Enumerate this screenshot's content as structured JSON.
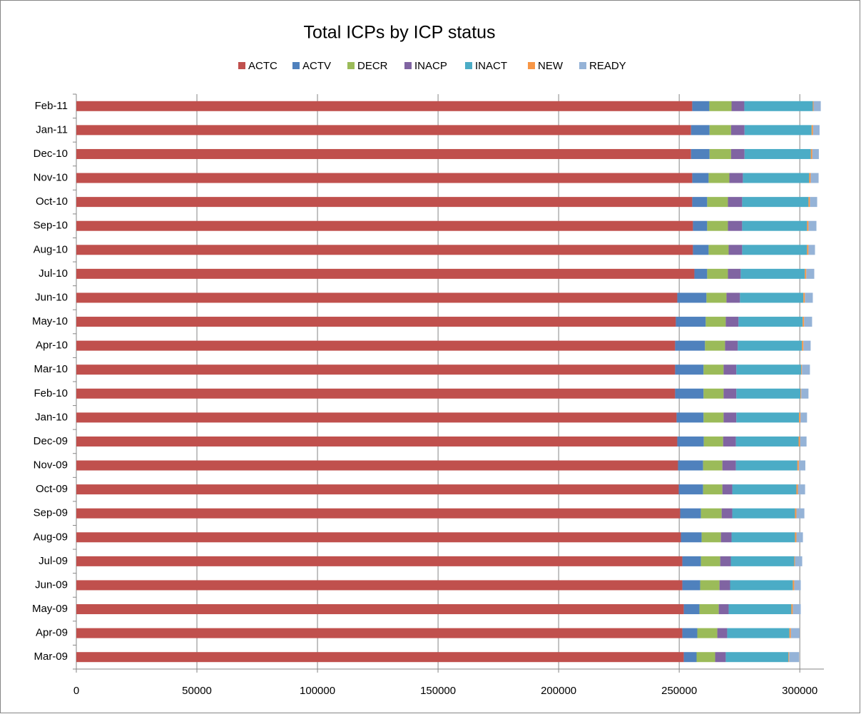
{
  "chart_data": {
    "type": "stacked-hbar",
    "title": "Total ICPs by ICP status",
    "categories": [
      "Mar-09",
      "Apr-09",
      "May-09",
      "Jun-09",
      "Jul-09",
      "Aug-09",
      "Sep-09",
      "Oct-09",
      "Nov-09",
      "Dec-09",
      "Jan-10",
      "Feb-10",
      "Mar-10",
      "Apr-10",
      "May-10",
      "Jun-10",
      "Jul-10",
      "Aug-10",
      "Sep-10",
      "Oct-10",
      "Nov-10",
      "Dec-10",
      "Jan-11",
      "Feb-11"
    ],
    "series": [
      {
        "name": "ACTC",
        "color": "#c0504d",
        "values": [
          251900,
          251300,
          251900,
          251300,
          251300,
          250700,
          250400,
          249800,
          249500,
          249200,
          248900,
          248300,
          248300,
          248300,
          248600,
          249200,
          256300,
          255700,
          255700,
          255400,
          255400,
          254900,
          254900,
          255400
        ]
      },
      {
        "name": "ACTV",
        "color": "#4f81bd",
        "values": [
          5300,
          6200,
          6500,
          7400,
          7700,
          8600,
          8600,
          10100,
          10400,
          11000,
          11200,
          11800,
          11800,
          12400,
          12400,
          12100,
          5300,
          6500,
          5900,
          6200,
          6800,
          7700,
          7700,
          7100
        ]
      },
      {
        "name": "DECR",
        "color": "#9bbb59",
        "values": [
          7700,
          8300,
          8000,
          8000,
          8000,
          8000,
          8600,
          8000,
          8000,
          8000,
          8300,
          8300,
          8300,
          8300,
          8300,
          8300,
          8600,
          8300,
          8600,
          8600,
          8600,
          8900,
          8900,
          9200
        ]
      },
      {
        "name": "INACP",
        "color": "#8064a2",
        "values": [
          4400,
          4100,
          4100,
          4400,
          4400,
          4400,
          4400,
          4100,
          5600,
          5300,
          5300,
          5300,
          5300,
          5300,
          5300,
          5600,
          5300,
          5600,
          5900,
          5900,
          5600,
          5600,
          5600,
          5300
        ]
      },
      {
        "name": "INACT",
        "color": "#4bacc6",
        "values": [
          26000,
          25800,
          26000,
          26000,
          26300,
          26300,
          26000,
          26600,
          25500,
          26000,
          26000,
          26600,
          26900,
          26600,
          26600,
          26300,
          26600,
          26900,
          26900,
          27500,
          27500,
          27500,
          27800,
          28400
        ]
      },
      {
        "name": "NEW",
        "color": "#f79646",
        "values": [
          300,
          600,
          600,
          600,
          300,
          600,
          600,
          600,
          600,
          600,
          600,
          300,
          300,
          600,
          600,
          600,
          600,
          600,
          600,
          600,
          600,
          600,
          600,
          300
        ]
      },
      {
        "name": "READY",
        "color": "#95b3d7",
        "values": [
          4100,
          3600,
          3300,
          2700,
          3000,
          2700,
          3300,
          3000,
          2700,
          2700,
          2700,
          3000,
          3300,
          3000,
          3300,
          3300,
          3300,
          2700,
          3300,
          3000,
          3300,
          2700,
          2700,
          3000
        ]
      }
    ],
    "xlim": [
      0,
      310000
    ],
    "xticks": [
      0,
      50000,
      100000,
      150000,
      200000,
      250000,
      300000
    ],
    "grid": true,
    "legend": "top"
  }
}
